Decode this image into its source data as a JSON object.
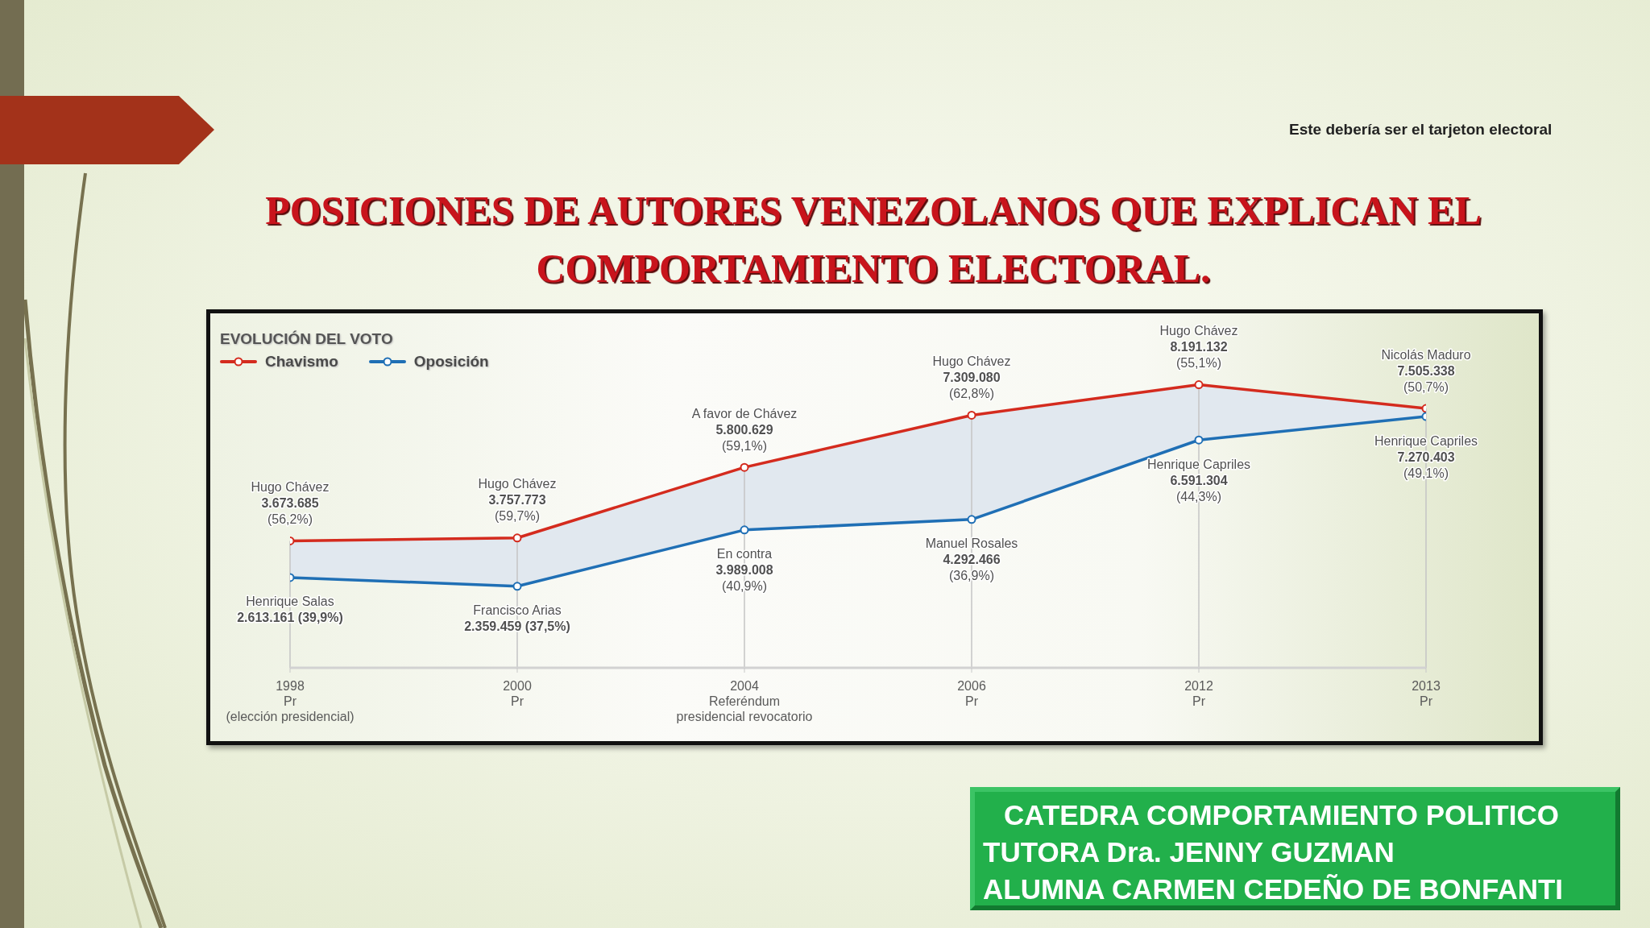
{
  "chart_data": {
    "type": "line",
    "title": "POSICIONES DE AUTORES VENEZOLANOS QUE EXPLICAN EL COMPORTAMIENTO ELECTORAL.",
    "subtitle": "EVOLUCIÓN DEL VOTO",
    "annotations": [
      "Este debería ser el tarjeton electoral",
      "CATEDRA COMPORTAMIENTO POLITICO",
      "TUTORA Dra. JENNY GUZMAN",
      "ALUMNA CARMEN CEDEÑO DE BONFANTI"
    ],
    "categories": [
      "1998\nPr\n(elección presidencial)",
      "2000\nPr",
      "2004\nReferéndum\npresidencial revocatorio",
      "2006\nPr",
      "2012\nPr",
      "2013\nPr"
    ],
    "series": [
      {
        "name": "Chavismo",
        "type": "area",
        "color": "#d42b1e",
        "values": [
          3673685,
          3757773,
          5800629,
          7309080,
          8191132,
          7505338
        ],
        "value_labels": [
          "Hugo Chávez\n3.673.685\n(56,2%)",
          "Hugo Chávez\n3.757.773\n(59,7%)",
          "A favor de Chávez\n5.800.629\n(59,1%)",
          "Hugo Chávez\n7.309.080\n(62,8%)",
          "Hugo Chávez\n8.191.132\n(55,1%)",
          "Nicolás Maduro\n7.505.338\n(50,7%)"
        ]
      },
      {
        "name": "Oposición",
        "color": "#1f6fb5",
        "values": [
          2613161,
          2359459,
          3989008,
          4292466,
          6591304,
          7270403
        ],
        "value_labels": [
          "Henrique Salas\n2.613.161 (39,9%)",
          "Francisco Arias\n2.359.459 (37,5%)",
          "En contra\n3.989.008\n(40,9%)",
          "Manuel Rosales\n4.292.466\n(36,9%)",
          "Henrique Capriles\n6.591.304\n(44,3%)",
          "Henrique Capriles\n7.270.403\n(49,1%)"
        ]
      }
    ],
    "legend": "top left",
    "grid": "x",
    "marker": "circle",
    "line_style": "solid",
    "tick_labels": "x"
  }
}
